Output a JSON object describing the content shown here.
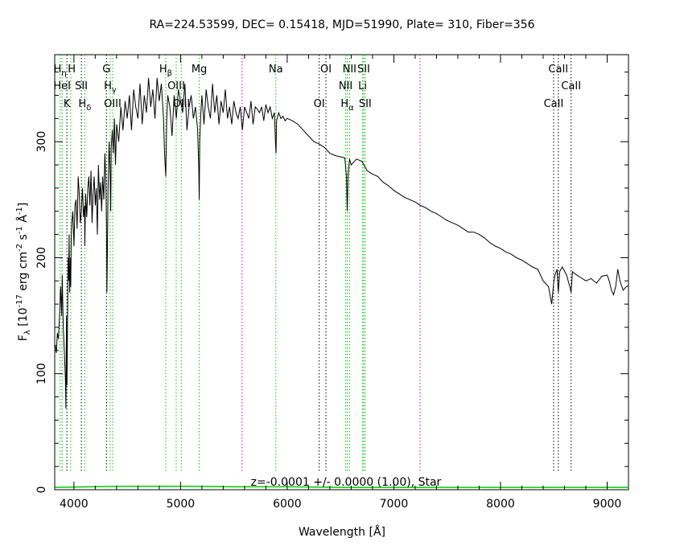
{
  "chart_data": {
    "type": "line",
    "title": "RA=224.53599, DEC= 0.15418, MJD=51990, Plate= 310, Fiber=356",
    "xlabel": "Wavelength [Å]",
    "ylabel": "F",
    "ylabel_sub": "λ",
    "ylabel_units": "[10",
    "ylabel_units_parts": [
      "[10",
      "-17",
      " erg cm",
      "-2",
      " s",
      "-1",
      " Å",
      "-1",
      "]"
    ],
    "xlim": [
      3820,
      9200
    ],
    "ylim": [
      0,
      375
    ],
    "xticks": [
      4000,
      5000,
      6000,
      7000,
      8000,
      9000
    ],
    "yticks": [
      0,
      100,
      200,
      300
    ],
    "xtick_labels": [
      "4000",
      "5000",
      "6000",
      "7000",
      "8000",
      "9000"
    ],
    "ytick_labels": [
      "0",
      "100",
      "200",
      "300"
    ],
    "grid": false,
    "annotation": "z=-0.0001 +/- 0.0000 (1.00), Star",
    "colors": {
      "spectrum": "#000000",
      "error": "#00cc00",
      "emission_lines": "#00cc00",
      "absorption_lines": "#000000",
      "sky_lines": "#cc00cc"
    },
    "series": [
      {
        "name": "flux",
        "x": [
          3825,
          3835,
          3845,
          3855,
          3865,
          3875,
          3885,
          3890,
          3895,
          3900,
          3910,
          3920,
          3925,
          3930,
          3935,
          3940,
          3945,
          3950,
          3955,
          3960,
          3965,
          3968,
          3970,
          3975,
          3980,
          3990,
          4000,
          4010,
          4020,
          4030,
          4040,
          4050,
          4060,
          4070,
          4080,
          4090,
          4100,
          4102,
          4110,
          4120,
          4130,
          4140,
          4150,
          4160,
          4170,
          4180,
          4190,
          4200,
          4210,
          4220,
          4230,
          4240,
          4250,
          4260,
          4270,
          4280,
          4290,
          4300,
          4305,
          4310,
          4320,
          4330,
          4340,
          4345,
          4350,
          4360,
          4370,
          4380,
          4390,
          4400,
          4420,
          4440,
          4460,
          4480,
          4500,
          4520,
          4540,
          4560,
          4580,
          4600,
          4620,
          4640,
          4660,
          4680,
          4700,
          4720,
          4740,
          4760,
          4780,
          4800,
          4820,
          4840,
          4850,
          4861,
          4870,
          4880,
          4900,
          4920,
          4940,
          4960,
          4980,
          5000,
          5020,
          5040,
          5060,
          5080,
          5100,
          5120,
          5140,
          5160,
          5170,
          5175,
          5180,
          5190,
          5200,
          5220,
          5240,
          5260,
          5280,
          5300,
          5320,
          5340,
          5360,
          5380,
          5400,
          5420,
          5440,
          5460,
          5480,
          5500,
          5520,
          5540,
          5560,
          5580,
          5600,
          5620,
          5640,
          5660,
          5680,
          5700,
          5720,
          5740,
          5760,
          5780,
          5800,
          5820,
          5840,
          5860,
          5880,
          5890,
          5895,
          5900,
          5920,
          5940,
          5960,
          5980,
          6000,
          6050,
          6100,
          6150,
          6200,
          6250,
          6300,
          6350,
          6400,
          6450,
          6500,
          6540,
          6555,
          6563,
          6570,
          6585,
          6600,
          6650,
          6700,
          6750,
          6800,
          6850,
          6900,
          6950,
          7000,
          7050,
          7100,
          7150,
          7200,
          7250,
          7300,
          7350,
          7400,
          7450,
          7500,
          7550,
          7600,
          7650,
          7700,
          7750,
          7800,
          7850,
          7900,
          7950,
          8000,
          8050,
          8100,
          8150,
          8200,
          8250,
          8300,
          8350,
          8400,
          8450,
          8480,
          8498,
          8510,
          8530,
          8542,
          8555,
          8580,
          8620,
          8650,
          8662,
          8675,
          8700,
          8750,
          8800,
          8850,
          8900,
          8950,
          9000,
          9020,
          9040,
          9060,
          9080,
          9100,
          9120,
          9150,
          9180,
          9200
        ],
        "y": [
          125,
          118,
          135,
          130,
          150,
          175,
          150,
          185,
          165,
          140,
          120,
          95,
          70,
          150,
          90,
          140,
          200,
          180,
          220,
          170,
          190,
          200,
          175,
          215,
          230,
          240,
          210,
          245,
          250,
          225,
          270,
          255,
          230,
          240,
          260,
          235,
          245,
          210,
          255,
          235,
          260,
          270,
          245,
          275,
          230,
          255,
          270,
          245,
          260,
          220,
          280,
          250,
          265,
          240,
          270,
          250,
          290,
          265,
          230,
          170,
          260,
          300,
          270,
          240,
          295,
          310,
          290,
          320,
          280,
          315,
          300,
          330,
          310,
          335,
          320,
          340,
          310,
          345,
          330,
          320,
          350,
          315,
          340,
          325,
          355,
          330,
          345,
          320,
          355,
          335,
          350,
          320,
          290,
          270,
          320,
          340,
          330,
          305,
          340,
          320,
          345,
          335,
          325,
          350,
          310,
          330,
          340,
          320,
          330,
          310,
          280,
          250,
          300,
          325,
          340,
          315,
          345,
          330,
          320,
          350,
          325,
          340,
          315,
          335,
          325,
          345,
          320,
          330,
          315,
          335,
          325,
          320,
          330,
          310,
          330,
          325,
          320,
          335,
          315,
          330,
          328,
          325,
          330,
          318,
          332,
          325,
          330,
          320,
          325,
          300,
          290,
          318,
          325,
          320,
          322,
          318,
          320,
          318,
          315,
          310,
          305,
          300,
          298,
          295,
          290,
          288,
          287,
          286,
          270,
          240,
          270,
          285,
          280,
          285,
          283,
          275,
          272,
          270,
          265,
          262,
          258,
          255,
          252,
          250,
          248,
          245,
          243,
          240,
          238,
          235,
          232,
          230,
          228,
          225,
          222,
          222,
          220,
          217,
          213,
          210,
          208,
          205,
          203,
          200,
          198,
          195,
          192,
          190,
          180,
          175,
          160,
          178,
          185,
          190,
          170,
          188,
          192,
          185,
          175,
          170,
          188,
          186,
          183,
          180,
          182,
          178,
          184,
          185,
          180,
          172,
          168,
          175,
          190,
          180,
          172,
          175,
          176
        ]
      },
      {
        "name": "error",
        "x": [
          3825,
          4500,
          5000,
          5500,
          6000,
          6500,
          7000,
          7500,
          8000,
          8500,
          9000,
          9200
        ],
        "y": [
          2,
          3,
          3,
          2.5,
          2.5,
          2,
          2,
          2,
          2,
          2,
          2,
          2
        ]
      }
    ],
    "line_markers": [
      {
        "wavelength": 3870,
        "kind": "emission",
        "label": "H",
        "sub": "η",
        "sup": "",
        "row": 0
      },
      {
        "wavelength": 3889,
        "kind": "emission",
        "label": "H",
        "sub": "",
        "sup": "",
        "row": 0,
        "label_offset": 12
      },
      {
        "wavelength": 3889,
        "kind": "emission",
        "label": "HeI",
        "sub": "",
        "sup": "",
        "row": 1
      },
      {
        "wavelength": 3934,
        "kind": "absorption",
        "label": "K",
        "sub": "",
        "sup": "",
        "row": 2
      },
      {
        "wavelength": 3970,
        "kind": "emission",
        "label": "",
        "sub": "",
        "sup": "",
        "row": 0
      },
      {
        "wavelength": 4070,
        "kind": "absorption",
        "label": "SII",
        "sub": "",
        "sup": "",
        "row": 1
      },
      {
        "wavelength": 4102,
        "kind": "emission",
        "label": "H",
        "sub": "δ",
        "sup": "",
        "row": 2
      },
      {
        "wavelength": 4305,
        "kind": "absorption",
        "label": "G",
        "sub": "",
        "sup": "",
        "row": 0
      },
      {
        "wavelength": 4340,
        "kind": "emission",
        "label": "H",
        "sub": "γ",
        "sup": "",
        "row": 1
      },
      {
        "wavelength": 4363,
        "kind": "emission",
        "label": "OIII",
        "sub": "",
        "sup": "",
        "row": 2
      },
      {
        "wavelength": 4861,
        "kind": "emission",
        "label": "H",
        "sub": "β",
        "sup": "",
        "row": 0
      },
      {
        "wavelength": 4959,
        "kind": "emission",
        "label": "OIII",
        "sub": "",
        "sup": "",
        "row": 1
      },
      {
        "wavelength": 5007,
        "kind": "emission",
        "label": "OIII",
        "sub": "",
        "sup": "",
        "row": 2
      },
      {
        "wavelength": 5175,
        "kind": "emission",
        "label": "Mg",
        "sub": "",
        "sup": "",
        "row": 0
      },
      {
        "wavelength": 5577,
        "kind": "sky",
        "label": "",
        "sub": "",
        "sup": "",
        "row": 0
      },
      {
        "wavelength": 5893,
        "kind": "emission",
        "label": "Na",
        "sub": "",
        "sup": "",
        "row": 0
      },
      {
        "wavelength": 6300,
        "kind": "absorption",
        "label": "OI",
        "sub": "",
        "sup": "",
        "row": 2
      },
      {
        "wavelength": 6363,
        "kind": "absorption",
        "label": "OI",
        "sub": "",
        "sup": "",
        "row": 0
      },
      {
        "wavelength": 6548,
        "kind": "emission",
        "label": "NII",
        "sub": "",
        "sup": "",
        "row": 1
      },
      {
        "wavelength": 6563,
        "kind": "emission",
        "label": "H",
        "sub": "α",
        "sup": "",
        "row": 2
      },
      {
        "wavelength": 6584,
        "kind": "emission",
        "label": "NII",
        "sub": "",
        "sup": "",
        "row": 0
      },
      {
        "wavelength": 6707,
        "kind": "emission",
        "label": "Li",
        "sub": "",
        "sup": "",
        "row": 1
      },
      {
        "wavelength": 6717,
        "kind": "emission",
        "label": "SII",
        "sub": "",
        "sup": "",
        "row": 0
      },
      {
        "wavelength": 6731,
        "kind": "emission",
        "label": "SII",
        "sub": "",
        "sup": "",
        "row": 2
      },
      {
        "wavelength": 7246,
        "kind": "sky",
        "label": "",
        "sub": "",
        "sup": "",
        "row": 0
      },
      {
        "wavelength": 8498,
        "kind": "absorption",
        "label": "CaII",
        "sub": "",
        "sup": "",
        "row": 2
      },
      {
        "wavelength": 8542,
        "kind": "absorption",
        "label": "CaII",
        "sub": "",
        "sup": "",
        "row": 0
      },
      {
        "wavelength": 8662,
        "kind": "absorption",
        "label": "CaII",
        "sub": "",
        "sup": "",
        "row": 1
      }
    ]
  }
}
